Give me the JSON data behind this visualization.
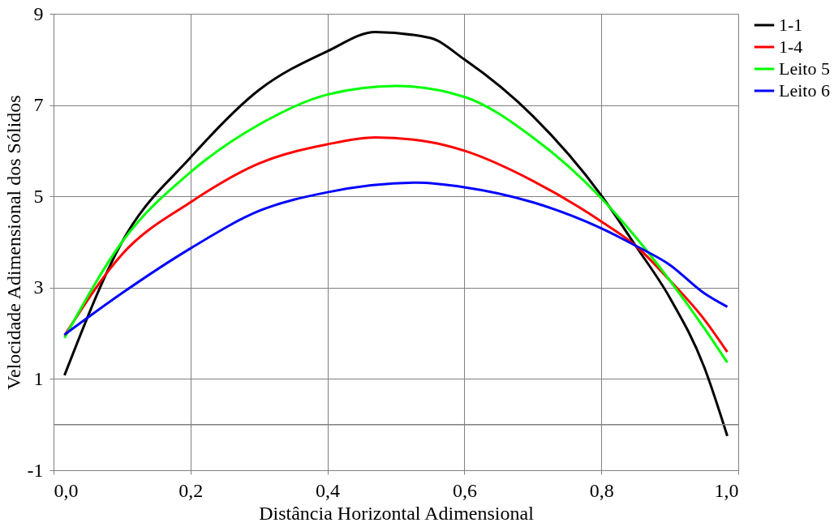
{
  "chart_data": {
    "type": "line",
    "xlabel": "Distância Horizontal Adimensional",
    "ylabel": "Velocidade Adimensional dos Sólidos",
    "x": [
      0.016,
      0.1,
      0.2,
      0.3,
      0.4,
      0.47,
      0.55,
      0.6,
      0.7,
      0.8,
      0.85,
      0.9,
      0.95,
      0.984
    ],
    "series": [
      {
        "name": "1-1",
        "color": "#000000",
        "values": [
          1.08,
          4.0,
          5.85,
          7.33,
          8.18,
          8.6,
          8.47,
          8.0,
          6.76,
          5.02,
          3.92,
          2.78,
          1.27,
          -0.25
        ]
      },
      {
        "name": "1-4",
        "color": "#ff0000",
        "values": [
          1.95,
          3.73,
          4.87,
          5.72,
          6.14,
          6.29,
          6.19,
          6.0,
          5.34,
          4.45,
          3.92,
          3.16,
          2.31,
          1.59
        ]
      },
      {
        "name": "Leito 5",
        "color": "#00ff00",
        "x": [
          0.016,
          0.1,
          0.2,
          0.3,
          0.4,
          0.5,
          0.6,
          0.7,
          0.8,
          0.85,
          0.9,
          0.95,
          0.984
        ],
        "values": [
          1.9,
          4.0,
          5.53,
          6.57,
          7.23,
          7.42,
          7.18,
          6.29,
          4.96,
          4.11,
          3.16,
          2.12,
          1.36
        ]
      },
      {
        "name": "Leito 6",
        "color": "#0000ff",
        "x": [
          0.016,
          0.1,
          0.2,
          0.3,
          0.4,
          0.53,
          0.6,
          0.7,
          0.8,
          0.85,
          0.9,
          0.95,
          0.984
        ],
        "values": [
          1.97,
          2.88,
          3.86,
          4.68,
          5.09,
          5.3,
          5.2,
          4.87,
          4.3,
          3.92,
          3.5,
          2.88,
          2.58
        ]
      }
    ],
    "xlim": [
      0,
      1
    ],
    "xticks": [
      {
        "value": 0,
        "label": "0,0"
      },
      {
        "value": 0.2,
        "label": "0,2"
      },
      {
        "value": 0.4,
        "label": "0,4"
      },
      {
        "value": 0.6,
        "label": "0,6"
      },
      {
        "value": 0.8,
        "label": "0,8"
      },
      {
        "value": 1,
        "label": "1,0"
      }
    ],
    "ylim": [
      -1,
      9
    ],
    "yticks": [
      -1,
      1,
      3,
      5,
      7,
      9
    ],
    "ref_lines": [
      {
        "axis": "y",
        "value": 0,
        "label": null,
        "color": "#808080"
      }
    ],
    "grid": true,
    "legend": "right",
    "marker": "none",
    "line_style": "solid"
  }
}
